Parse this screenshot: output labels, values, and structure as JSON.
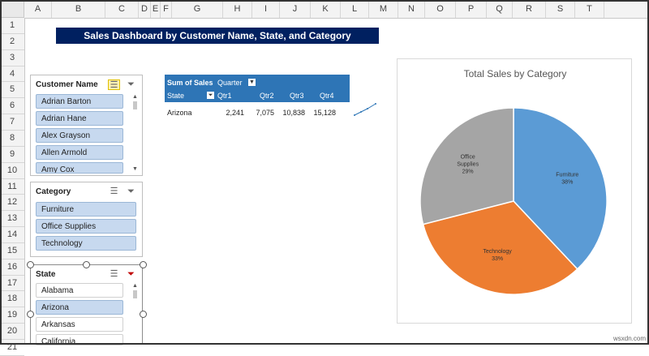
{
  "columns": [
    "A",
    "B",
    "C",
    "D",
    "E",
    "F",
    "G",
    "H",
    "I",
    "J",
    "K",
    "L",
    "M",
    "N",
    "O",
    "P",
    "Q",
    "R",
    "S",
    "T"
  ],
  "rows": [
    "1",
    "2",
    "3",
    "4",
    "5",
    "6",
    "7",
    "8",
    "9",
    "10",
    "11",
    "12",
    "13",
    "14",
    "15",
    "16",
    "17",
    "18",
    "19",
    "20",
    "21"
  ],
  "title": "Sales Dashboard by Customer Name, State, and Category",
  "slicers": {
    "customer": {
      "header": "Customer Name",
      "items": [
        "Adrian Barton",
        "Adrian Hane",
        "Alex Grayson",
        "Allen Armold",
        "Amy Cox"
      ]
    },
    "category": {
      "header": "Category",
      "items": [
        "Furniture",
        "Office Supplies",
        "Technology"
      ]
    },
    "state": {
      "header": "State",
      "items": [
        "Alabama",
        "Arizona",
        "Arkansas",
        "California"
      ],
      "selected": "Arizona"
    }
  },
  "pivot": {
    "header_label": "Sum of Sales",
    "col_field": "Quarter",
    "row_field": "State",
    "quarters": [
      "Qtr1",
      "Qtr2",
      "Qtr3",
      "Qtr4"
    ],
    "row": {
      "state": "Arizona",
      "values": [
        "2,241",
        "7,075",
        "10,838",
        "15,128"
      ]
    }
  },
  "chart_data": {
    "type": "pie",
    "title": "Total Sales by Category",
    "slices": [
      {
        "label": "Furniture",
        "percent": 38,
        "pct_label": "38%",
        "color": "#5b9bd5"
      },
      {
        "label": "Technology",
        "percent": 33,
        "pct_label": "33%",
        "color": "#ed7d31"
      },
      {
        "label": "Office Supplies",
        "percent": 29,
        "pct_label": "29%",
        "color": "#a5a5a5"
      }
    ]
  },
  "colors": {
    "title_bg": "#002060",
    "pivot_header": "#2e75b6",
    "slicer_selected": "#c7d9ef"
  },
  "watermark": "wsxdn.com"
}
